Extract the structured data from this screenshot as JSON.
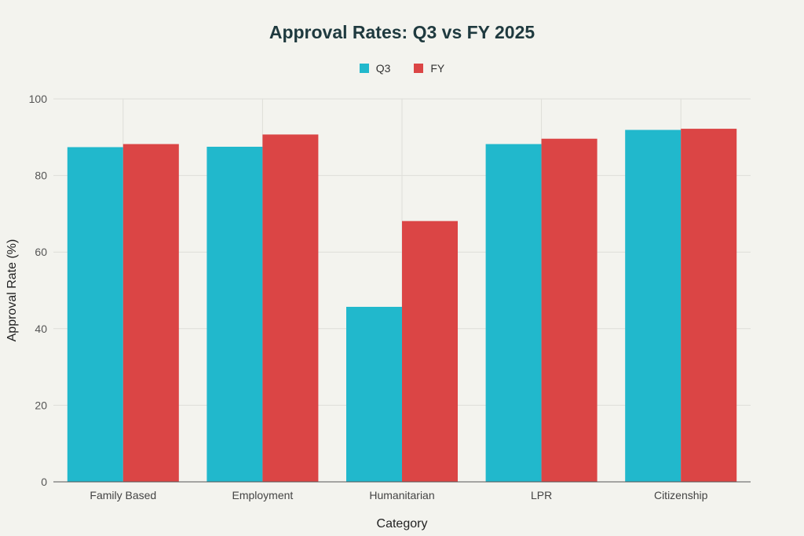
{
  "chart_data": {
    "type": "bar",
    "title": "Approval Rates: Q3 vs FY 2025",
    "xlabel": "Category",
    "ylabel": "Approval Rate (%)",
    "categories": [
      "Family Based",
      "Employment",
      "Humanitarian",
      "LPR",
      "Citizenship"
    ],
    "series": [
      {
        "name": "Q3",
        "color": "#21b8cc",
        "values": [
          87.4,
          87.5,
          45.7,
          88.2,
          91.9
        ]
      },
      {
        "name": "FY",
        "color": "#db4545",
        "values": [
          88.2,
          90.7,
          68.1,
          89.6,
          92.2
        ]
      }
    ],
    "ylim": [
      0,
      100
    ],
    "yticks": [
      0,
      20,
      40,
      60,
      80,
      100
    ],
    "grid": true,
    "legend_position": "top-center"
  }
}
